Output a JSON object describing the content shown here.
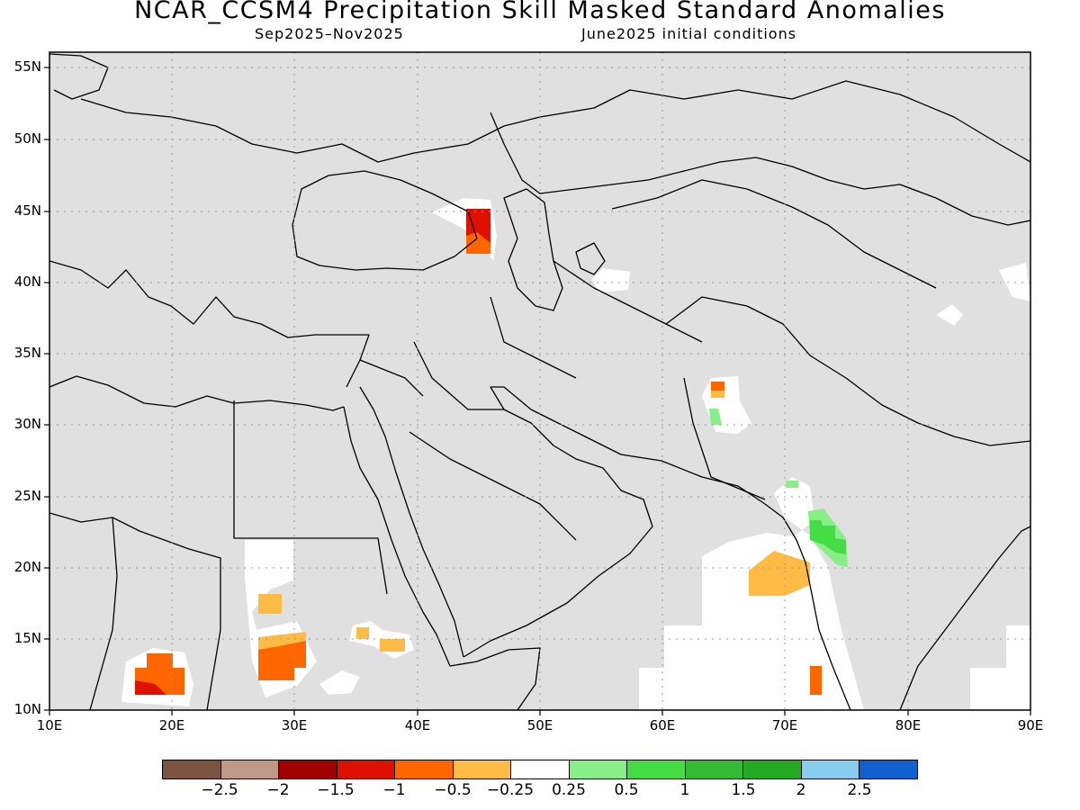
{
  "title": "NCAR_CCSM4 Precipitation Skill Masked Standard Anomalies",
  "season": "Sep2025–Nov2025",
  "init": "June2025 initial conditions",
  "lat_labels": [
    "55N",
    "50N",
    "45N",
    "40N",
    "35N",
    "30N",
    "25N",
    "20N",
    "15N",
    "10N"
  ],
  "lon_labels": [
    "10E",
    "20E",
    "30E",
    "40E",
    "50E",
    "60E",
    "70E",
    "80E",
    "90E"
  ],
  "legend_labels": [
    "−2.5",
    "−2",
    "−1.5",
    "−1",
    "−0.5",
    "−0.25",
    "0.25",
    "0.5",
    "1",
    "1.5",
    "2",
    "2.5"
  ],
  "legend_colors": [
    "#7a5440",
    "#c09888",
    "#a00000",
    "#e01000",
    "#ff6600",
    "#ffbb44",
    "#ffffff",
    "#88ee88",
    "#44dd44",
    "#33bb33",
    "#22aa22",
    "#88ccf0",
    "#1060d0"
  ],
  "colors": {
    "masked": "#e0e0e0",
    "unmasked": "#ffffff",
    "coast": "#000000",
    "grid": "#999999"
  }
}
